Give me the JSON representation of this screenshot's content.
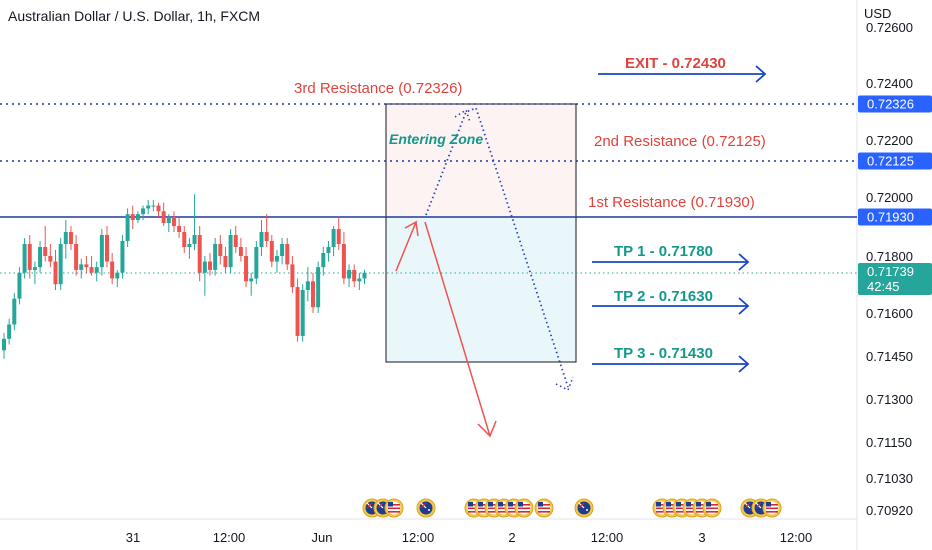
{
  "chart_data": {
    "type": "candlestick",
    "title": "Australian Dollar / U.S. Dollar, 1h, FXCM",
    "y_unit": "USD",
    "y_axis_ticks": [
      "0.72600",
      "0.72400",
      "0.72200",
      "0.72000",
      "0.71800",
      "0.71600",
      "0.71450",
      "0.71300",
      "0.71150",
      "0.71030",
      "0.70920"
    ],
    "x_axis_ticks": [
      "31",
      "12:00",
      "Jun",
      "12:00",
      "2",
      "12:00",
      "3",
      "12:00"
    ],
    "price_tags": [
      {
        "label": "0.72326",
        "bg": "#2962ff"
      },
      {
        "label": "0.72125",
        "bg": "#2962ff"
      },
      {
        "label": "0.71930",
        "bg": "#2962ff"
      },
      {
        "label": "0.71739",
        "sub": "42:45",
        "bg": "#26a69a"
      }
    ],
    "levels": [
      {
        "name": "3rd Resistance (0.72326)",
        "value": 0.72326,
        "style": "dotted",
        "color": "#1e3a9e"
      },
      {
        "name": "2nd Resistance (0.72125)",
        "value": 0.72125,
        "style": "dotted",
        "color": "#1e3a9e"
      },
      {
        "name": "1st Resistance (0.71930)",
        "value": 0.7193,
        "style": "solid",
        "color": "#1e3a9e"
      },
      {
        "name": "current",
        "value": 0.71739,
        "style": "dotted",
        "color": "#26a69a"
      }
    ],
    "annotations": {
      "exit": "EXIT - 0.72430",
      "resistance3": "3rd Resistance (0.72326)",
      "resistance2": "2nd Resistance (0.72125)",
      "resistance1": "1st Resistance (0.71930)",
      "tp1": "TP 1 - 0.71780",
      "tp2": "TP 2 - 0.71630",
      "tp3": "TP 3 - 0.71430",
      "entering_zone": "Entering Zone"
    },
    "colors": {
      "up": "#26a69a",
      "down": "#ef5350",
      "red_text": "#e0423c",
      "teal_text": "#13988a",
      "blue_arrow": "#1846c8",
      "dotted_path": "#2a47c0"
    },
    "candles": [
      [
        0.7147,
        0.7153,
        0.7144,
        0.7151
      ],
      [
        0.7151,
        0.7158,
        0.7149,
        0.7156
      ],
      [
        0.7156,
        0.7167,
        0.7154,
        0.7165
      ],
      [
        0.7165,
        0.7176,
        0.7163,
        0.7174
      ],
      [
        0.7174,
        0.7186,
        0.7172,
        0.7184
      ],
      [
        0.7184,
        0.7187,
        0.7172,
        0.7175
      ],
      [
        0.7175,
        0.7178,
        0.717,
        0.7176
      ],
      [
        0.7176,
        0.7185,
        0.7174,
        0.7183
      ],
      [
        0.7183,
        0.719,
        0.7178,
        0.718
      ],
      [
        0.718,
        0.7184,
        0.7176,
        0.7178
      ],
      [
        0.7178,
        0.7182,
        0.7168,
        0.717
      ],
      [
        0.717,
        0.7186,
        0.7168,
        0.7184
      ],
      [
        0.7184,
        0.7192,
        0.7179,
        0.7188
      ],
      [
        0.7188,
        0.719,
        0.7182,
        0.7184
      ],
      [
        0.7184,
        0.7187,
        0.7173,
        0.7175
      ],
      [
        0.7175,
        0.7179,
        0.7172,
        0.7177
      ],
      [
        0.7177,
        0.718,
        0.7174,
        0.7176
      ],
      [
        0.7176,
        0.718,
        0.7173,
        0.7174
      ],
      [
        0.7174,
        0.7178,
        0.7171,
        0.7176
      ],
      [
        0.7176,
        0.7189,
        0.7173,
        0.7187
      ],
      [
        0.7187,
        0.719,
        0.7176,
        0.7178
      ],
      [
        0.7178,
        0.7181,
        0.717,
        0.7172
      ],
      [
        0.7172,
        0.7175,
        0.7169,
        0.7174
      ],
      [
        0.7174,
        0.7187,
        0.7172,
        0.7185
      ],
      [
        0.7185,
        0.7196,
        0.7183,
        0.7194
      ],
      [
        0.7194,
        0.7197,
        0.7189,
        0.7192
      ],
      [
        0.7192,
        0.7195,
        0.7191,
        0.7194
      ],
      [
        0.7194,
        0.7197,
        0.7192,
        0.7196
      ],
      [
        0.7196,
        0.7199,
        0.7194,
        0.7197
      ],
      [
        0.7197,
        0.7199,
        0.7195,
        0.7197
      ],
      [
        0.7197,
        0.7198,
        0.7193,
        0.7195
      ],
      [
        0.7195,
        0.7198,
        0.719,
        0.7191
      ],
      [
        0.7191,
        0.7194,
        0.7188,
        0.7193
      ],
      [
        0.7193,
        0.7195,
        0.7188,
        0.719
      ],
      [
        0.719,
        0.7193,
        0.7186,
        0.7188
      ],
      [
        0.7188,
        0.719,
        0.7181,
        0.7183
      ],
      [
        0.7183,
        0.7186,
        0.7179,
        0.7184
      ],
      [
        0.7184,
        0.7201,
        0.7182,
        0.7187
      ],
      [
        0.7187,
        0.719,
        0.7171,
        0.7174
      ],
      [
        0.7174,
        0.718,
        0.7166,
        0.7178
      ],
      [
        0.7178,
        0.7181,
        0.7173,
        0.7175
      ],
      [
        0.7175,
        0.7186,
        0.7173,
        0.7184
      ],
      [
        0.7184,
        0.7187,
        0.7177,
        0.718
      ],
      [
        0.718,
        0.7183,
        0.7174,
        0.7176
      ],
      [
        0.7176,
        0.7189,
        0.7174,
        0.7187
      ],
      [
        0.7187,
        0.719,
        0.7181,
        0.7183
      ],
      [
        0.7183,
        0.7186,
        0.7178,
        0.718
      ],
      [
        0.718,
        0.7183,
        0.7169,
        0.7171
      ],
      [
        0.7171,
        0.7174,
        0.7166,
        0.7172
      ],
      [
        0.7172,
        0.7185,
        0.717,
        0.7183
      ],
      [
        0.7183,
        0.7192,
        0.718,
        0.7188
      ],
      [
        0.7188,
        0.7194,
        0.7183,
        0.7185
      ],
      [
        0.7185,
        0.7187,
        0.7176,
        0.7178
      ],
      [
        0.7178,
        0.7182,
        0.7174,
        0.718
      ],
      [
        0.718,
        0.7186,
        0.7177,
        0.7184
      ],
      [
        0.7184,
        0.7186,
        0.7175,
        0.7177
      ],
      [
        0.7177,
        0.718,
        0.7167,
        0.7169
      ],
      [
        0.7169,
        0.7172,
        0.715,
        0.7152
      ],
      [
        0.7152,
        0.717,
        0.715,
        0.7168
      ],
      [
        0.7168,
        0.7176,
        0.7164,
        0.7171
      ],
      [
        0.7171,
        0.7174,
        0.716,
        0.7162
      ],
      [
        0.7162,
        0.7178,
        0.716,
        0.7176
      ],
      [
        0.7176,
        0.7183,
        0.7173,
        0.7181
      ],
      [
        0.7181,
        0.7185,
        0.7178,
        0.7183
      ],
      [
        0.7183,
        0.719,
        0.718,
        0.7189
      ],
      [
        0.7189,
        0.7193,
        0.7182,
        0.7184
      ],
      [
        0.7184,
        0.7188,
        0.717,
        0.7172
      ],
      [
        0.7172,
        0.7177,
        0.7169,
        0.7175
      ],
      [
        0.7175,
        0.7177,
        0.7169,
        0.7171
      ],
      [
        0.7171,
        0.7174,
        0.7168,
        0.7172
      ],
      [
        0.7172,
        0.7175,
        0.717,
        0.7174
      ]
    ]
  }
}
